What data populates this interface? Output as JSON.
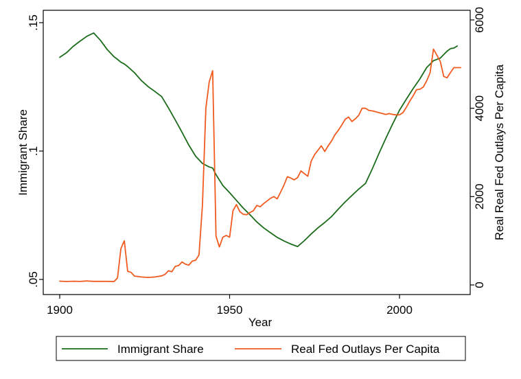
{
  "chart_data": {
    "type": "line",
    "xlabel": "Year",
    "ylabel_left": "Immigrant Share",
    "ylabel_right": "Real Real Fed Outlays Per Capita",
    "xlim": [
      1900,
      2020
    ],
    "ylim_left": [
      0.047,
      0.152
    ],
    "ylim_right": [
      0,
      6000
    ],
    "x_ticks": [
      {
        "value": 1900,
        "label": "1900"
      },
      {
        "value": 1950,
        "label": "1950"
      },
      {
        "value": 2000,
        "label": "2000"
      }
    ],
    "y_left_ticks": [
      {
        "value": 0.05,
        "label": ".05"
      },
      {
        "value": 0.1,
        "label": ".1"
      },
      {
        "value": 0.15,
        "label": ".15"
      }
    ],
    "y_right_ticks": [
      {
        "value": 0,
        "label": "0"
      },
      {
        "value": 2000,
        "label": "2000"
      },
      {
        "value": 4000,
        "label": "4000"
      },
      {
        "value": 6000,
        "label": "6000"
      }
    ],
    "grid": false,
    "legend_position": "bottom",
    "series": [
      {
        "name": "Immigrant Share",
        "axis": "left",
        "color": "#1a6b1a",
        "x": [
          1900,
          1902,
          1904,
          1906,
          1908,
          1910,
          1912,
          1914,
          1916,
          1917,
          1918,
          1919,
          1920,
          1922,
          1924,
          1926,
          1928,
          1930,
          1932,
          1934,
          1936,
          1938,
          1940,
          1942,
          1944,
          1945,
          1946,
          1948,
          1950,
          1952,
          1954,
          1956,
          1958,
          1960,
          1962,
          1964,
          1966,
          1968,
          1970,
          1972,
          1974,
          1976,
          1978,
          1980,
          1982,
          1984,
          1986,
          1988,
          1990,
          1992,
          1994,
          1996,
          1998,
          2000,
          2002,
          2004,
          2006,
          2008,
          2010,
          2012,
          2014,
          2015,
          2016,
          2017
        ],
        "values": [
          0.1365,
          0.1383,
          0.1408,
          0.1428,
          0.1447,
          0.146,
          0.1431,
          0.1395,
          0.1367,
          0.1357,
          0.1346,
          0.1339,
          0.1329,
          0.1305,
          0.1275,
          0.1251,
          0.1232,
          0.1212,
          0.1168,
          0.1121,
          0.1073,
          0.1023,
          0.098,
          0.0952,
          0.0938,
          0.0934,
          0.0908,
          0.0866,
          0.0838,
          0.0808,
          0.0778,
          0.0752,
          0.0724,
          0.0701,
          0.0682,
          0.0664,
          0.065,
          0.0638,
          0.0628,
          0.0651,
          0.0677,
          0.0701,
          0.0722,
          0.0745,
          0.0774,
          0.0802,
          0.0827,
          0.0852,
          0.0874,
          0.0931,
          0.0992,
          0.105,
          0.1106,
          0.1159,
          0.1202,
          0.1243,
          0.1281,
          0.1325,
          0.1352,
          0.1362,
          0.1389,
          0.1399,
          0.1401,
          0.1409
        ]
      },
      {
        "name": "Real Fed Outlays Per Capita",
        "axis": "right",
        "color": "#f05a1e",
        "x": [
          1900,
          1902,
          1904,
          1906,
          1908,
          1910,
          1912,
          1914,
          1916,
          1917,
          1918,
          1919,
          1920,
          1921,
          1922,
          1924,
          1926,
          1928,
          1930,
          1931,
          1932,
          1933,
          1934,
          1935,
          1936,
          1937,
          1938,
          1939,
          1940,
          1941,
          1942,
          1943,
          1944,
          1945,
          1946,
          1947,
          1948,
          1949,
          1950,
          1951,
          1952,
          1953,
          1954,
          1955,
          1956,
          1957,
          1958,
          1959,
          1960,
          1961,
          1962,
          1963,
          1964,
          1965,
          1966,
          1967,
          1968,
          1969,
          1970,
          1971,
          1972,
          1973,
          1974,
          1975,
          1976,
          1977,
          1978,
          1979,
          1980,
          1981,
          1982,
          1983,
          1984,
          1985,
          1986,
          1987,
          1988,
          1989,
          1990,
          1991,
          1992,
          1993,
          1994,
          1995,
          1996,
          1997,
          1998,
          1999,
          2000,
          2001,
          2002,
          2003,
          2004,
          2005,
          2006,
          2007,
          2008,
          2009,
          2010,
          2011,
          2012,
          2013,
          2014,
          2015,
          2016,
          2017,
          2018
        ],
        "values": [
          85,
          78,
          84,
          80,
          90,
          81,
          81,
          81,
          78,
          160,
          820,
          1000,
          310,
          285,
          200,
          180,
          170,
          180,
          205,
          240,
          320,
          300,
          420,
          440,
          520,
          470,
          450,
          540,
          560,
          680,
          1800,
          4000,
          4600,
          4850,
          1100,
          860,
          1080,
          1120,
          1080,
          1680,
          1820,
          1660,
          1600,
          1590,
          1640,
          1680,
          1800,
          1770,
          1840,
          1900,
          1960,
          2000,
          1950,
          2100,
          2260,
          2450,
          2420,
          2380,
          2430,
          2580,
          2520,
          2460,
          2800,
          2950,
          3050,
          3150,
          3020,
          3150,
          3260,
          3400,
          3500,
          3620,
          3750,
          3800,
          3700,
          3760,
          3840,
          4000,
          4000,
          3950,
          3940,
          3920,
          3900,
          3880,
          3860,
          3880,
          3860,
          3850,
          3850,
          3900,
          4020,
          4160,
          4280,
          4420,
          4430,
          4480,
          4620,
          4800,
          5340,
          5200,
          5060,
          4720,
          4690,
          4810,
          4920,
          4920,
          4920
        ]
      }
    ]
  }
}
